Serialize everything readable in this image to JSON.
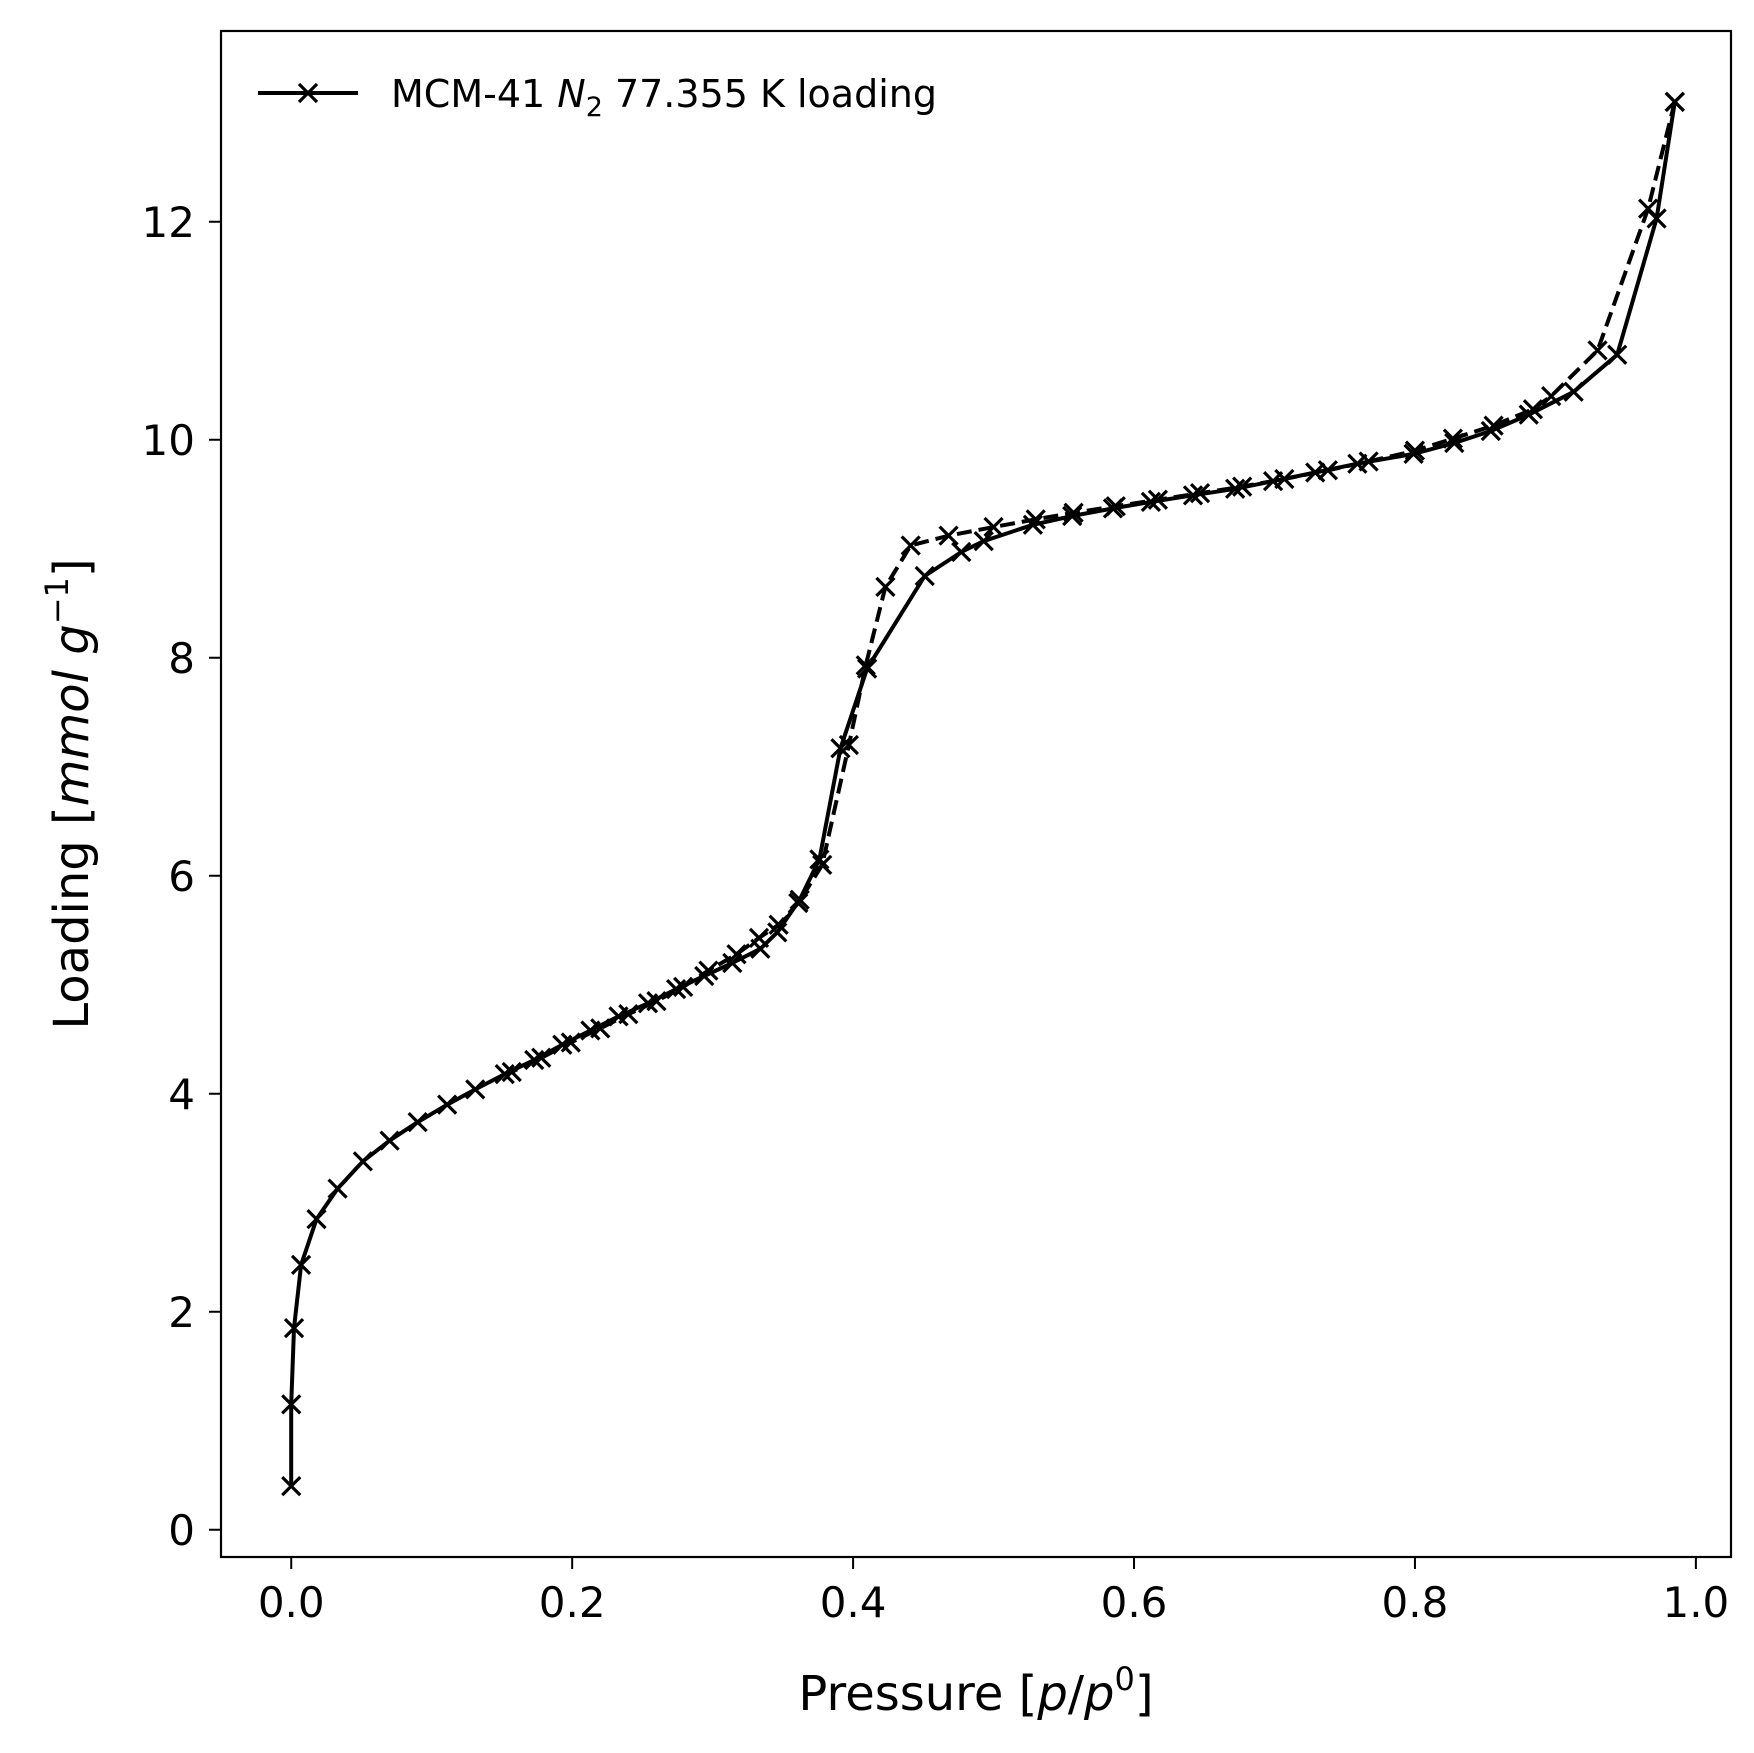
{
  "chart_data": {
    "type": "line",
    "xlabel": {
      "prefix": "Pressure [",
      "p": "p",
      "slash": "/",
      "p0": "p",
      "p0_sup": "0",
      "suffix": "]"
    },
    "ylabel": {
      "prefix": "Loading [",
      "unit": "mmol g",
      "sup": "−1",
      "suffix": "]"
    },
    "xlim": [
      -0.05,
      1.025
    ],
    "ylim": [
      -0.25,
      13.75
    ],
    "xticks": [
      0.0,
      0.2,
      0.4,
      0.6,
      0.8,
      1.0
    ],
    "xtick_labels": [
      "0.0",
      "0.2",
      "0.4",
      "0.6",
      "0.8",
      "1.0"
    ],
    "yticks": [
      0,
      2,
      4,
      6,
      8,
      10,
      12
    ],
    "ytick_labels": [
      "0",
      "2",
      "4",
      "6",
      "8",
      "10",
      "12"
    ],
    "grid": false,
    "legend": {
      "position": "top-left",
      "label_prefix": "MCM-41 ",
      "label_species": "N",
      "label_species_sub": "2",
      "label_suffix": " 77.355 K loading"
    },
    "color": "#000000",
    "marker": "x",
    "series": [
      {
        "branch": "adsorption",
        "linestyle": "solid",
        "x": [
          0.0,
          0.0,
          0.002,
          0.007,
          0.018,
          0.033,
          0.051,
          0.07,
          0.09,
          0.111,
          0.131,
          0.152,
          0.173,
          0.193,
          0.213,
          0.233,
          0.254,
          0.274,
          0.294,
          0.314,
          0.334,
          0.346,
          0.362,
          0.376,
          0.391,
          0.41,
          0.451,
          0.477,
          0.493,
          0.528,
          0.556,
          0.585,
          0.612,
          0.642,
          0.672,
          0.699,
          0.729,
          0.759,
          0.799,
          0.828,
          0.854,
          0.881,
          0.913,
          0.944,
          0.972,
          0.985
        ],
        "y": [
          0.4,
          1.15,
          1.85,
          2.43,
          2.85,
          3.13,
          3.38,
          3.57,
          3.74,
          3.9,
          4.04,
          4.18,
          4.31,
          4.45,
          4.58,
          4.71,
          4.83,
          4.96,
          5.08,
          5.2,
          5.33,
          5.48,
          5.78,
          6.15,
          7.17,
          7.9,
          8.75,
          8.97,
          9.07,
          9.22,
          9.3,
          9.37,
          9.43,
          9.49,
          9.55,
          9.62,
          9.7,
          9.78,
          9.87,
          9.97,
          10.08,
          10.23,
          10.44,
          10.78,
          12.03,
          13.1
        ]
      },
      {
        "branch": "desorption",
        "linestyle": "dashed",
        "x": [
          0.985,
          0.966,
          0.93,
          0.897,
          0.884,
          0.856,
          0.827,
          0.8,
          0.767,
          0.738,
          0.707,
          0.677,
          0.647,
          0.617,
          0.587,
          0.557,
          0.53,
          0.5,
          0.468,
          0.441,
          0.423,
          0.409,
          0.397,
          0.378,
          0.361,
          0.347,
          0.333,
          0.317,
          0.297,
          0.279,
          0.26,
          0.24,
          0.22,
          0.199,
          0.178,
          0.157
        ],
        "y": [
          13.1,
          12.12,
          10.82,
          10.4,
          10.28,
          10.13,
          10.01,
          9.9,
          9.8,
          9.72,
          9.64,
          9.57,
          9.51,
          9.45,
          9.39,
          9.33,
          9.27,
          9.2,
          9.12,
          9.03,
          8.65,
          7.93,
          7.2,
          6.1,
          5.75,
          5.55,
          5.43,
          5.28,
          5.13,
          4.98,
          4.85,
          4.73,
          4.6,
          4.47,
          4.33,
          4.2
        ]
      }
    ]
  }
}
